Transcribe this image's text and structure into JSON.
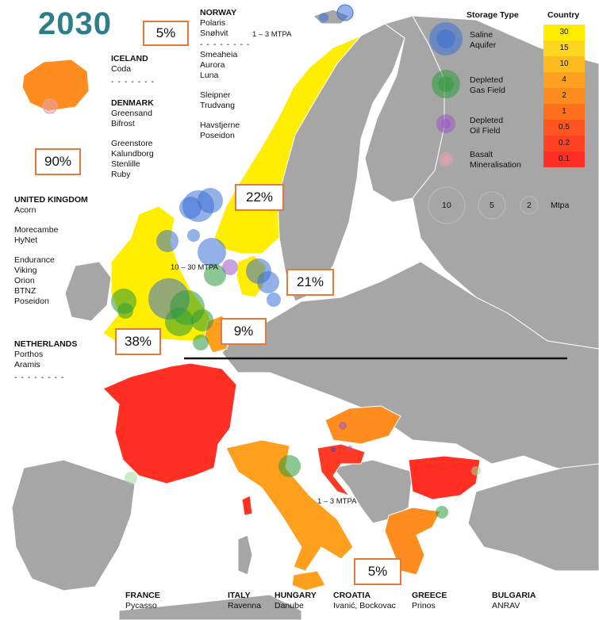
{
  "year": "2030",
  "countries_text": {
    "norway": {
      "name": "NORWAY",
      "groups": [
        [
          "Polaris",
          "Snøhvit"
        ],
        [
          "Smeaheia",
          "Aurora",
          "Luna"
        ],
        [
          "Sleipner",
          "Trudvang"
        ],
        [
          "Havstjerne",
          "Poseidon"
        ]
      ],
      "separator": "- - - - - - - -"
    },
    "iceland": {
      "name": "ICELAND",
      "projects": [
        "Coda"
      ],
      "separator": "- - - - - - -"
    },
    "denmark": {
      "name": "DENMARK",
      "groups": [
        [
          "Greensand",
          "Bifrost"
        ],
        [
          "Greenstore",
          "Kalundborg",
          "Stenlille",
          "Ruby"
        ]
      ]
    },
    "uk": {
      "name": "UNITED KINGDOM",
      "groups": [
        [
          "Acorn"
        ],
        [
          "Morecambe",
          "HyNet"
        ],
        [
          "Endurance",
          "Viking",
          "Orion",
          "BTNZ",
          "Poseidon"
        ]
      ]
    },
    "netherlands": {
      "name": "NETHERLANDS",
      "projects": [
        "Porthos",
        "Aramis"
      ],
      "separator": "- - - - - - - -"
    },
    "france": {
      "name": "FRANCE",
      "project": "Pycasso"
    },
    "italy": {
      "name": "ITALY",
      "project": "Ravenna"
    },
    "hungary": {
      "name": "HUNGARY",
      "project": "Danube"
    },
    "croatia": {
      "name": "CROATIA",
      "project": "Ivanić, Bockovac"
    },
    "greece": {
      "name": "GREECE",
      "project": "Prinos"
    },
    "bulgaria": {
      "name": "BULGARIA",
      "project": "ANRAV"
    }
  },
  "percentages": {
    "norway_top": "5%",
    "iceland": "90%",
    "norway": "22%",
    "denmark": "21%",
    "netherlands": "9%",
    "uk": "38%",
    "greece": "5%"
  },
  "mtpa_labels": {
    "north": "1 – 3 MTPA",
    "uk": "10 – 30 MTPA",
    "adriatic": "1 – 3 MTPA"
  },
  "legend": {
    "storage_title": "Storage Type",
    "types": [
      {
        "label_lines": [
          "Saline",
          "Aquifer"
        ],
        "color": "#3a6fd6"
      },
      {
        "label_lines": [
          "Depleted",
          "Gas Field"
        ],
        "color": "#2e9a3a"
      },
      {
        "label_lines": [
          "Depleted",
          "Oil Field"
        ],
        "color": "#9b57c7"
      },
      {
        "label_lines": [
          "Basalt",
          "Mineralisation"
        ],
        "color": "#e8a3b0"
      }
    ],
    "size_values": [
      "10",
      "5",
      "2"
    ],
    "size_unit": "Mtpa",
    "country_title": "Country",
    "country_scale": [
      {
        "value": "30",
        "color": "#ffee00"
      },
      {
        "value": "15",
        "color": "#ffd61f"
      },
      {
        "value": "10",
        "color": "#ffbb20"
      },
      {
        "value": "4",
        "color": "#ffa020"
      },
      {
        "value": "2",
        "color": "#ff8c1e"
      },
      {
        "value": "1",
        "color": "#ff6f1c"
      },
      {
        "value": "0.5",
        "color": "#ff5520"
      },
      {
        "value": "0.2",
        "color": "#ff4224"
      },
      {
        "value": "0.1",
        "color": "#ff2f24"
      }
    ]
  },
  "colors": {
    "land": "#a6a6a6",
    "box_border": "#e07a3f",
    "year": "#2e7d8a"
  }
}
